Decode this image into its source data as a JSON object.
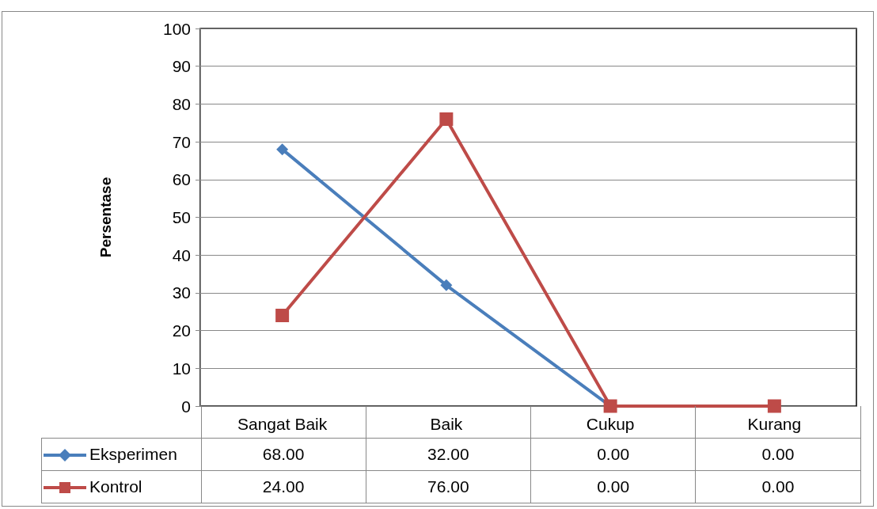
{
  "chart_data": {
    "type": "line",
    "ylabel": "Persentase",
    "categories": [
      "Sangat Baik",
      "Baik",
      "Cukup",
      "Kurang"
    ],
    "series": [
      {
        "name": "Eksperimen",
        "color": "#4a7ebb",
        "marker": "diamond",
        "values": [
          68,
          32,
          0,
          0
        ],
        "value_labels": [
          "68.00",
          "32.00",
          "0.00",
          "0.00"
        ]
      },
      {
        "name": "Kontrol",
        "color": "#be4b48",
        "marker": "square",
        "values": [
          24,
          76,
          0,
          0
        ],
        "value_labels": [
          "24.00",
          "76.00",
          "0.00",
          "0.00"
        ]
      }
    ],
    "ylim": [
      0,
      100
    ],
    "yticks": [
      0,
      10,
      20,
      30,
      40,
      50,
      60,
      70,
      80,
      90,
      100
    ],
    "grid": "y",
    "legend": "bottom"
  }
}
